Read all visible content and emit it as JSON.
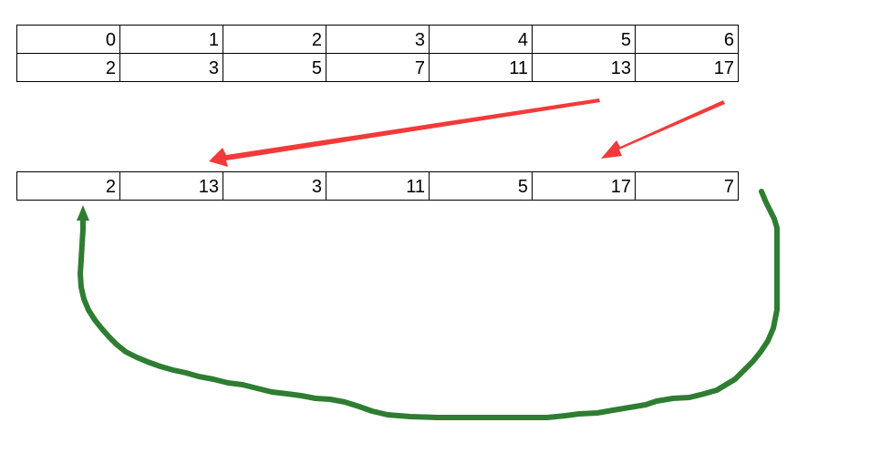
{
  "top_table": {
    "rows": [
      [
        "0",
        "1",
        "2",
        "3",
        "4",
        "5",
        "6"
      ],
      [
        "2",
        "3",
        "5",
        "7",
        "11",
        "13",
        "17"
      ]
    ]
  },
  "bottom_table": {
    "rows": [
      [
        "2",
        "13",
        "3",
        "11",
        "5",
        "17",
        "7"
      ]
    ]
  },
  "colors": {
    "red_arrow": "#f23a3a",
    "green_arrow": "#2e7d32",
    "grid_line": "#000000"
  }
}
